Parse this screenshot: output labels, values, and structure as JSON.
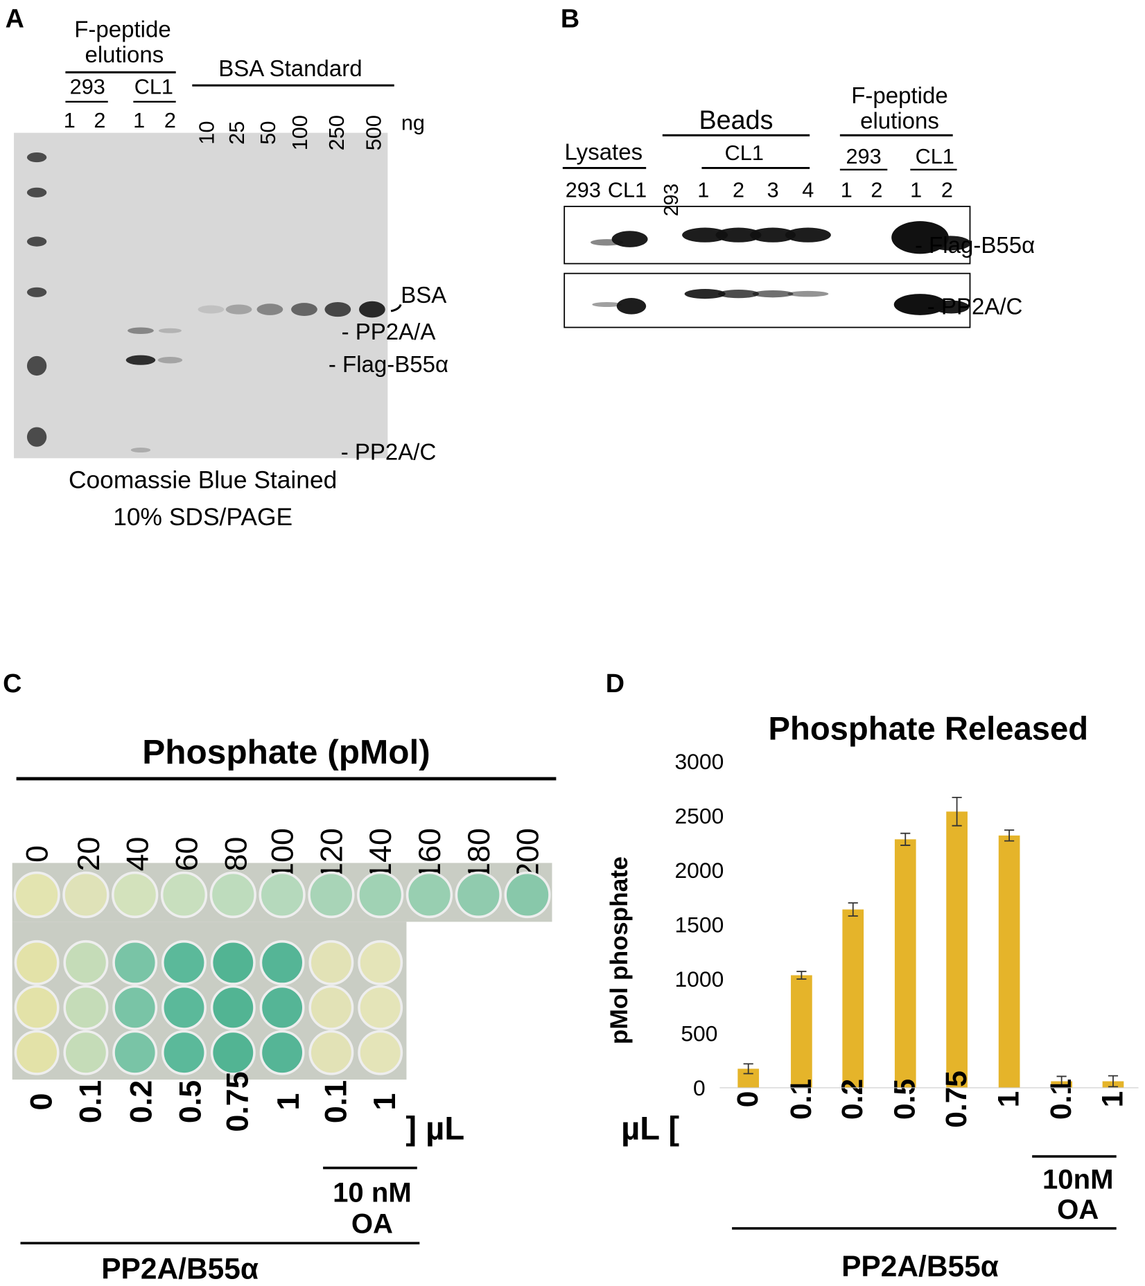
{
  "panel_a": {
    "letter": "A",
    "header": [
      "F-peptide",
      "elutions"
    ],
    "groups": [
      "293",
      "CL1"
    ],
    "lanes": [
      "1",
      "2",
      "1",
      "2"
    ],
    "standard_title": "BSA Standard",
    "standard_amounts": [
      "10",
      "25",
      "50",
      "100",
      "250",
      "500"
    ],
    "unit": "ng",
    "bands": [
      "BSA",
      "- PP2A/A",
      "- Flag-B55α",
      "- PP2A/C"
    ],
    "caption": [
      "Coomassie Blue Stained",
      "10% SDS/PAGE"
    ]
  },
  "panel_b": {
    "letter": "B",
    "lysates_title": "Lysates",
    "lysates_lanes": [
      "293",
      "CL1"
    ],
    "beads_title": "Beads",
    "beads_control": "293",
    "beads_group": "CL1",
    "beads_lanes": [
      "1",
      "2",
      "3",
      "4"
    ],
    "elution_header": [
      "F-peptide",
      "elutions"
    ],
    "elution_groups": [
      "293",
      "CL1"
    ],
    "elution_lanes": [
      "1",
      "2",
      "1",
      "2"
    ],
    "blots": [
      "- Flag-B55α",
      "- PP2A/C"
    ]
  },
  "panel_c": {
    "letter": "C",
    "title": "Phosphate (pMol)",
    "standards": [
      "0",
      "20",
      "40",
      "60",
      "80",
      "100",
      "120",
      "140",
      "160",
      "180",
      "200"
    ],
    "samples": [
      "0",
      "0.1",
      "0.2",
      "0.5",
      "0.75",
      "1",
      "0.1",
      "1"
    ],
    "unit": "] µL",
    "inhibitor": [
      "10 nM",
      "OA"
    ],
    "enzyme": "PP2A/B55α"
  },
  "panel_d": {
    "letter": "D",
    "unit": "µL [",
    "inhibitor": [
      "10nM",
      "OA"
    ],
    "enzyme": "PP2A/B55α"
  },
  "chart_data": {
    "type": "bar",
    "title": "Phosphate Released",
    "y_label": "pMol phosphate",
    "categories": [
      "0",
      "0.1",
      "0.2",
      "0.5",
      "0.75",
      "1",
      "0.1",
      "1"
    ],
    "values": [
      175,
      1035,
      1640,
      2285,
      2540,
      2320,
      60,
      60
    ],
    "errors": [
      45,
      35,
      60,
      55,
      130,
      50,
      45,
      50
    ],
    "color": "#e5b42a",
    "ylim": [
      0,
      3000
    ],
    "yticks": [
      0,
      500,
      1000,
      1500,
      2000,
      2500,
      3000
    ]
  }
}
